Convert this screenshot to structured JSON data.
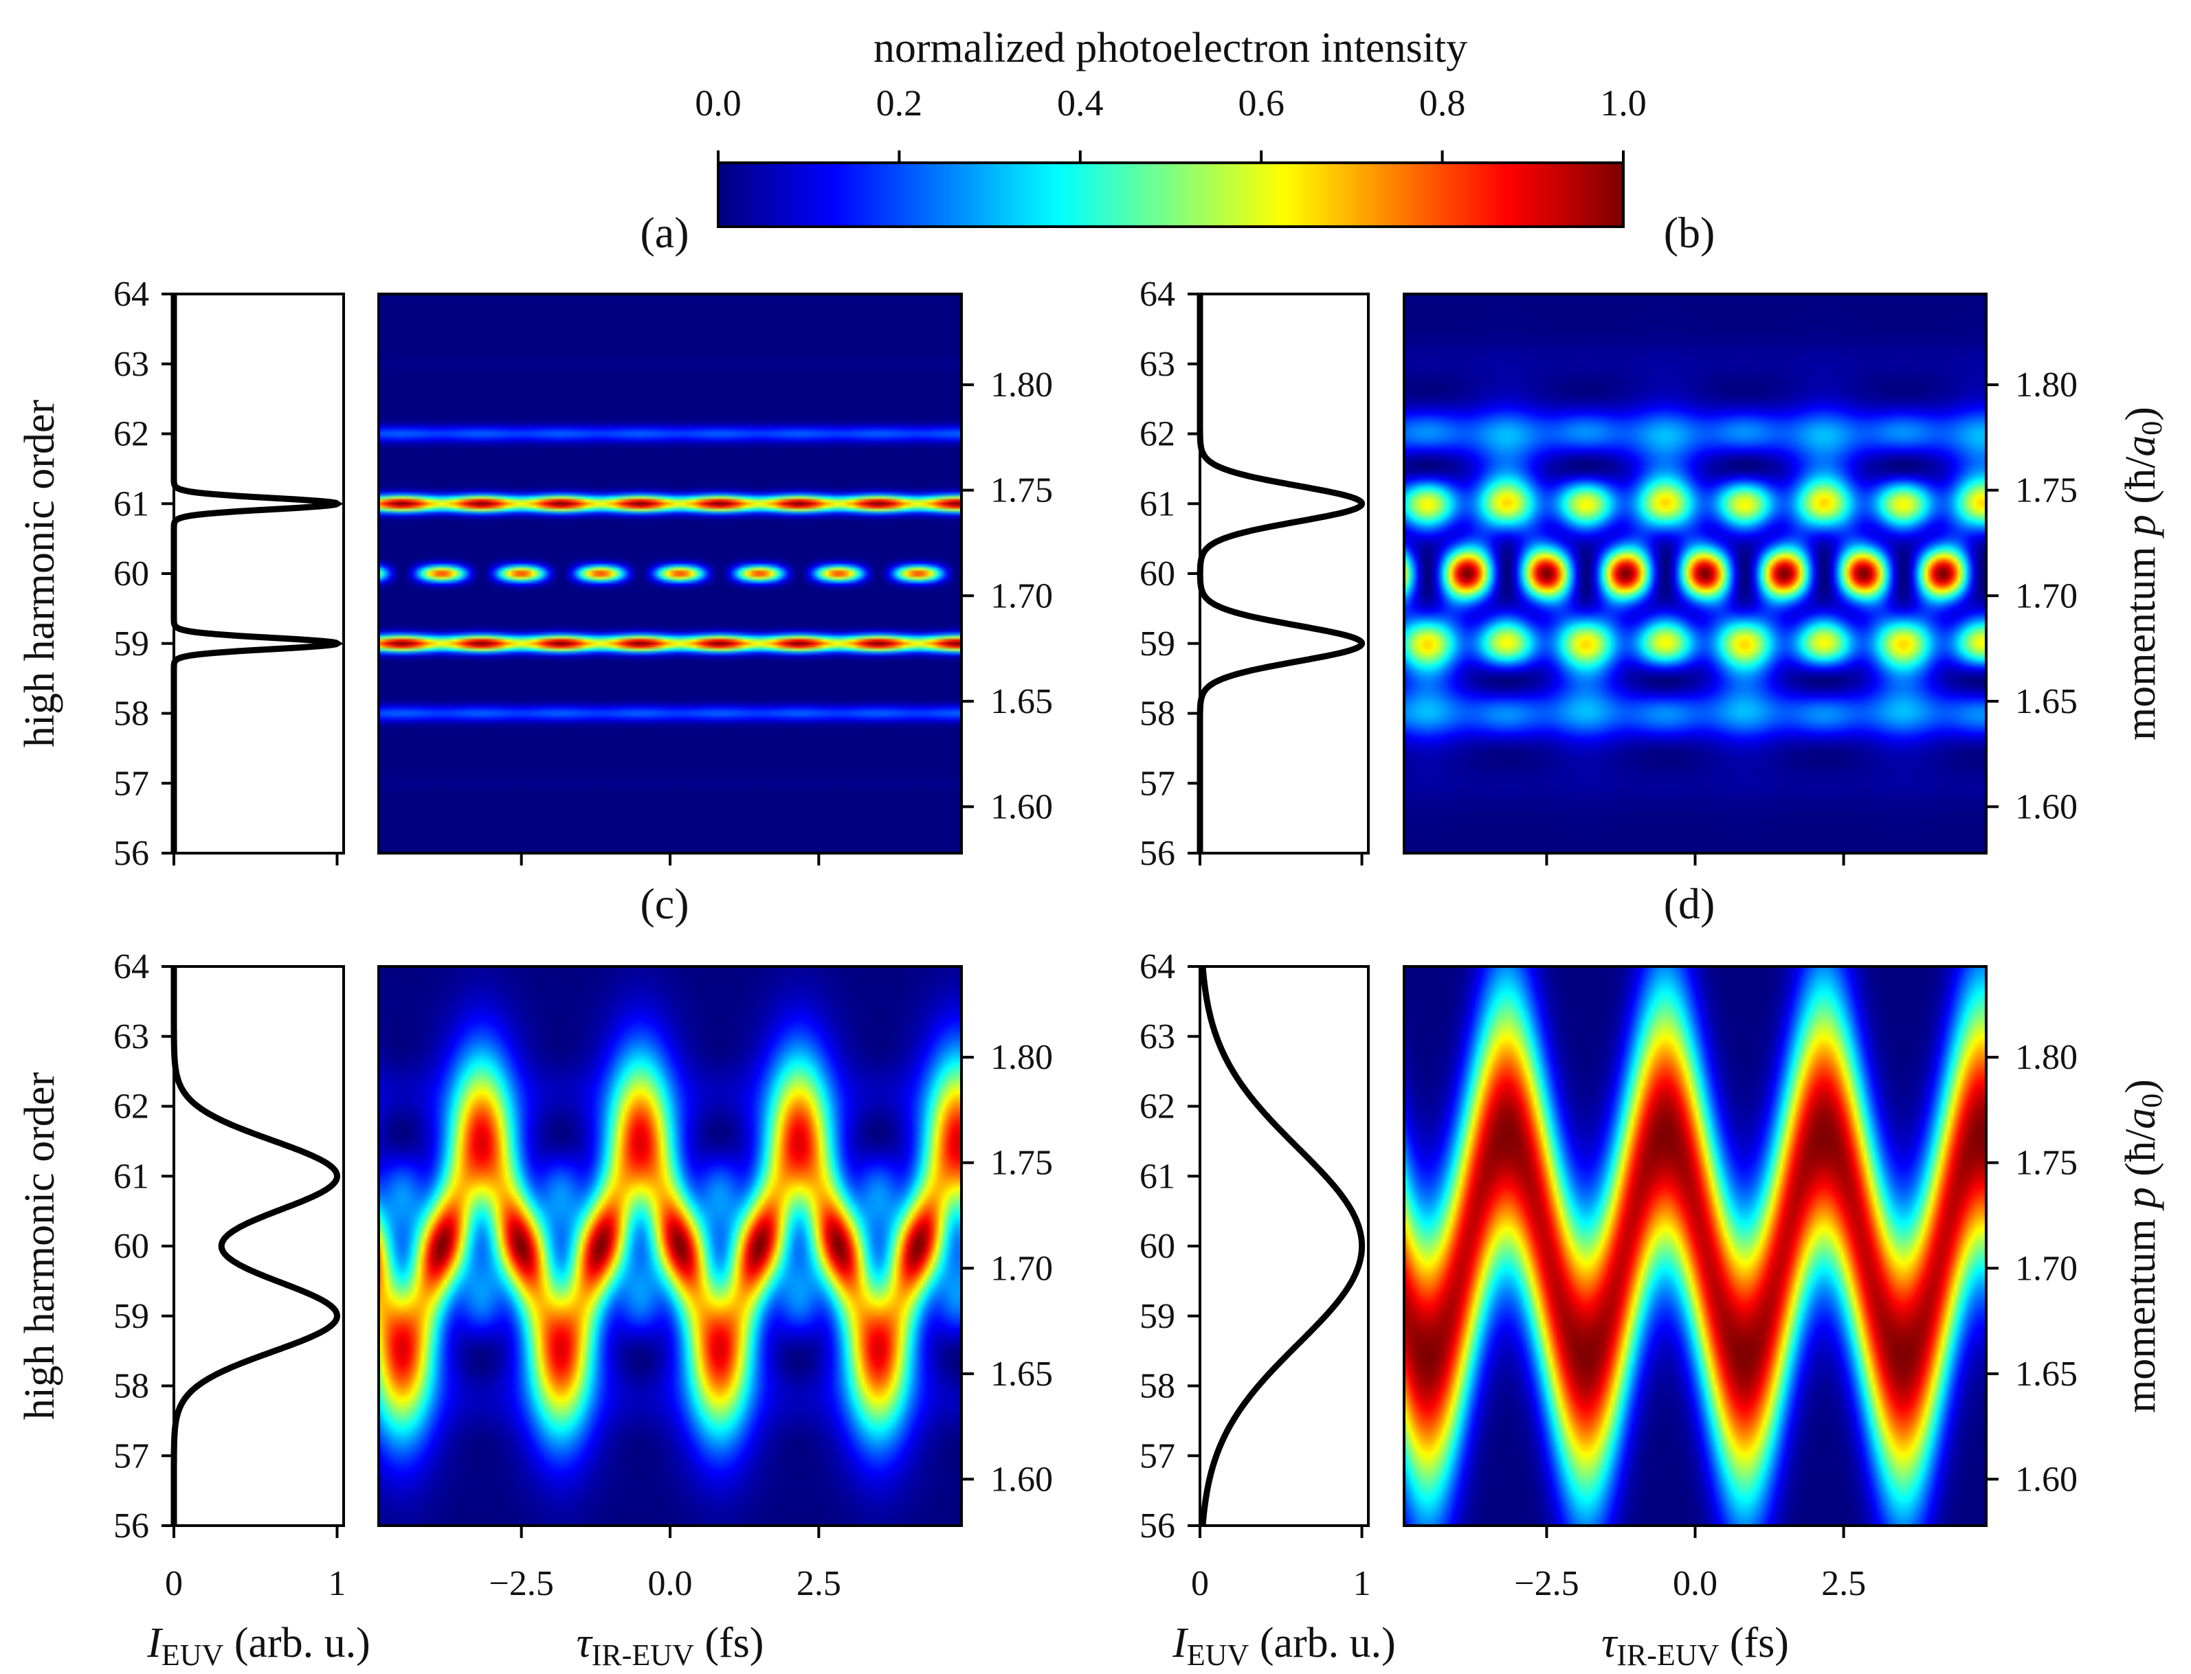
{
  "colorbar": {
    "title": "normalized photoelectron intensity",
    "ticks": [
      "0.0",
      "0.2",
      "0.4",
      "0.6",
      "0.8",
      "1.0"
    ],
    "range": [
      0,
      1
    ],
    "colormap": "jet"
  },
  "chart_data": {
    "type": "heatmap",
    "left_ylabel": "high harmonic order",
    "right_ylabel": {
      "text": "momentum ",
      "var": "p",
      "open": " (ħ/",
      "unit_var": "a",
      "unit_sub": "0",
      "close": ")"
    },
    "spectrum_xlabel": {
      "var": "I",
      "sub": "EUV",
      "rest": " (arb. u.)"
    },
    "delay_xlabel": {
      "var": "τ",
      "sub": "IR-EUV",
      "rest": " (fs)"
    },
    "harmonic_ticks": [
      "56",
      "57",
      "58",
      "59",
      "60",
      "61",
      "62",
      "63",
      "64"
    ],
    "harmonic_range": [
      56,
      64
    ],
    "momentum_ticks": [
      "1.60",
      "1.65",
      "1.70",
      "1.75",
      "1.80"
    ],
    "momentum_range": [
      1.578,
      1.843
    ],
    "delay_ticks": [
      "−2.5",
      "0.0",
      "2.5"
    ],
    "delay_tick_values": [
      -2.5,
      0.0,
      2.5
    ],
    "delay_range": [
      -4.9,
      4.9
    ],
    "intensity_ticks": [
      "0",
      "1"
    ],
    "intensity_range": [
      0,
      1.04
    ],
    "grid": false,
    "panels": [
      {
        "label": "(a)",
        "spectrum": {
          "peaks_order": [
            59,
            61
          ],
          "fwhm_order": 0.19
        },
        "features": "narrow main lines at orders 59 and 61, periodic sideband spots at order 60, faint lines at 58 and 62"
      },
      {
        "label": "(b)",
        "spectrum": {
          "peaks_order": [
            59,
            61
          ],
          "fwhm_order": 0.6
        },
        "features": "broadened main bands with interference spots at order 60"
      },
      {
        "label": "(c)",
        "spectrum": {
          "peaks_order": [
            59,
            61
          ],
          "fwhm_order": 1.2
        },
        "features": "overlapping bands with delay-dependent oscillating lobes"
      },
      {
        "label": "(d)",
        "spectrum": {
          "peaks_order": [
            60
          ],
          "fwhm_order": 3.3
        },
        "features": "single broad band oscillating sinusoidally with delay (streaking), maxima near -0.5 and 2.2 fs"
      }
    ]
  }
}
